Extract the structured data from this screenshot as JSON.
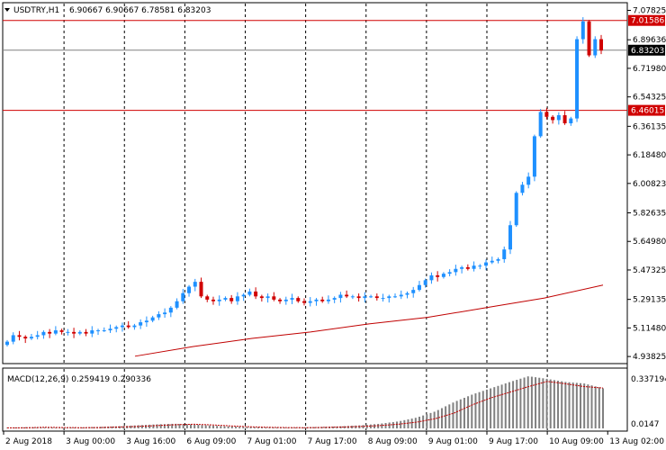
{
  "header": {
    "symbol": "USDTRY,H1",
    "ohlc": "6.90667 6.90667 6.78581 6.83203"
  },
  "macd": {
    "label": "MACD(12,26,9) 0.259419 0.290336",
    "scale_labels": [
      "0.337194",
      "0.0147"
    ],
    "axis_bottom_label": "0.0147"
  },
  "colors": {
    "bull": "#1e90ff",
    "bear": "#d00000",
    "level": "#d00000",
    "current": "#808080",
    "ma": "#c00000",
    "histogram": "#808080",
    "signal": "#c00000"
  },
  "price_axis": {
    "ticks": [
      "7.07825",
      "6.89636",
      "6.71980",
      "6.54325",
      "6.36135",
      "6.18480",
      "6.00823",
      "5.82635",
      "5.64980",
      "5.47325",
      "5.29135",
      "5.11480",
      "4.93825"
    ]
  },
  "levels": {
    "resistance": "7.01586",
    "current": "6.83203",
    "support": "6.46015"
  },
  "time_axis": {
    "labels": [
      "2 Aug 2018",
      "3 Aug 00:00",
      "3 Aug 16:00",
      "6 Aug 09:00",
      "7 Aug 01:00",
      "7 Aug 17:00",
      "8 Aug 09:00",
      "9 Aug 01:00",
      "9 Aug 17:00",
      "10 Aug 09:00",
      "13 Aug 02:00"
    ]
  },
  "chart_data": {
    "type": "candlestick",
    "title": "USDTRY,H1",
    "ylim": [
      4.9,
      7.12
    ],
    "series": [
      {
        "name": "price",
        "values": [
          5.03,
          5.07,
          5.06,
          5.05,
          5.06,
          5.07,
          5.09,
          5.08,
          5.1,
          5.09,
          5.09,
          5.08,
          5.09,
          5.08,
          5.1,
          5.1,
          5.1,
          5.11,
          5.12,
          5.13,
          5.12,
          5.13,
          5.15,
          5.16,
          5.18,
          5.2,
          5.21,
          5.24,
          5.28,
          5.33,
          5.37,
          5.4,
          5.31,
          5.29,
          5.28,
          5.29,
          5.3,
          5.28,
          5.31,
          5.32,
          5.34,
          5.31,
          5.3,
          5.31,
          5.29,
          5.28,
          5.29,
          5.3,
          5.28,
          5.27,
          5.28,
          5.29,
          5.28,
          5.29,
          5.3,
          5.32,
          5.31,
          5.31,
          5.3,
          5.31,
          5.31,
          5.3,
          5.3,
          5.31,
          5.31,
          5.32,
          5.33,
          5.35,
          5.38,
          5.41,
          5.44,
          5.43,
          5.45,
          5.46,
          5.48,
          5.49,
          5.48,
          5.5,
          5.5,
          5.52,
          5.53,
          5.54,
          5.6,
          5.75,
          5.95,
          6.0,
          6.05,
          6.3,
          6.45,
          6.42,
          6.4,
          6.43,
          6.38,
          6.41,
          6.9,
          7.01,
          6.8,
          6.9,
          6.83
        ]
      },
      {
        "name": "MA",
        "values": [
          4.94,
          5.0,
          5.05,
          5.09,
          5.14,
          5.18,
          5.24,
          5.3,
          5.38
        ]
      },
      {
        "name": "MACD",
        "values": [
          0.004,
          0.008,
          0.006,
          0.005,
          0.006,
          0.01,
          0.014,
          0.02,
          0.026,
          0.03,
          0.025,
          0.018,
          0.012,
          0.008,
          0.006,
          0.005,
          0.007,
          0.01,
          0.014,
          0.02,
          0.03,
          0.045,
          0.07,
          0.11,
          0.17,
          0.22,
          0.26,
          0.3,
          0.337,
          0.32,
          0.3,
          0.29,
          0.259
        ]
      }
    ]
  }
}
